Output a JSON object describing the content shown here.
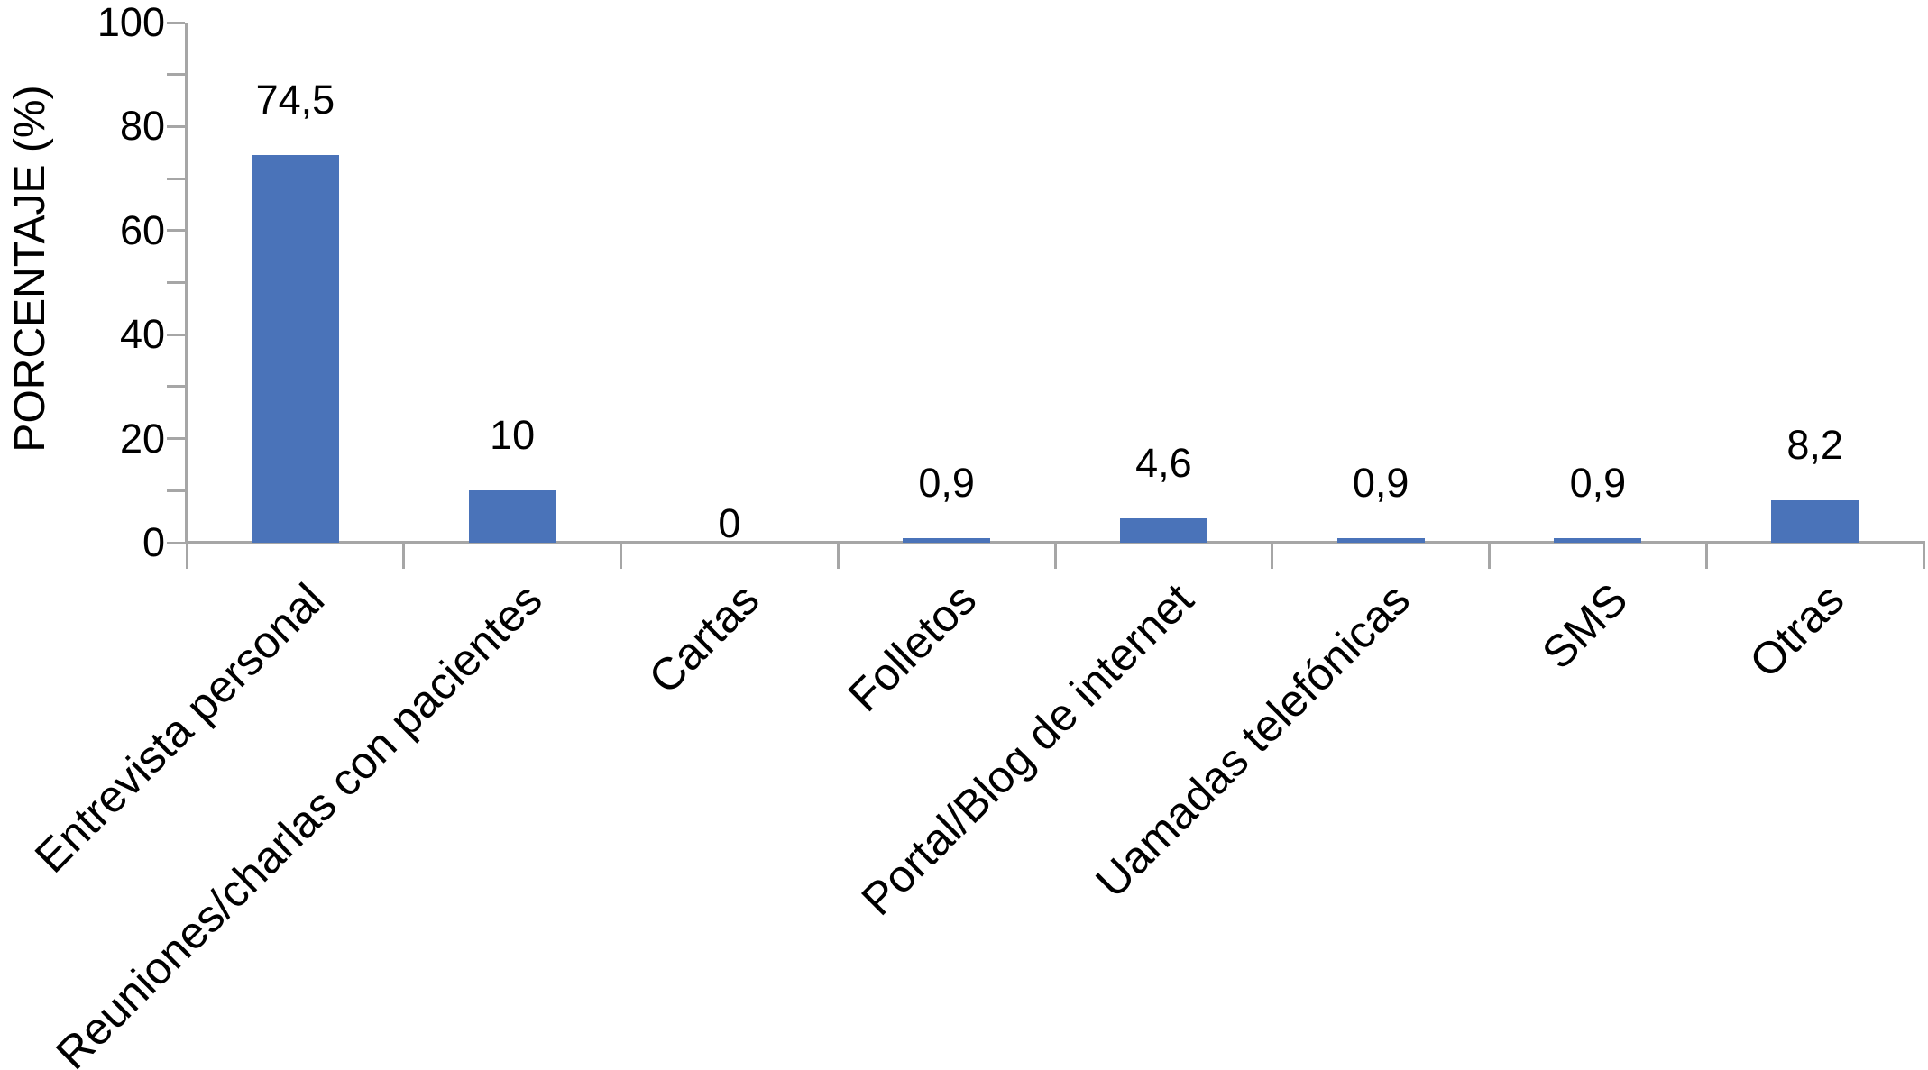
{
  "chart_data": {
    "type": "bar",
    "title": "",
    "ylabel": "PORCENTAJE (%)",
    "xlabel": "",
    "categories": [
      "Entrevista personal",
      "Reuniones/charlas con pacientes",
      "Cartas",
      "Folletos",
      "Portal/Blog de internet",
      "Uamadas telefónicas",
      "SMS",
      "Otras"
    ],
    "values": [
      74.5,
      10,
      0,
      0.9,
      4.6,
      0.9,
      0.9,
      8.2
    ],
    "value_labels": [
      "74,5",
      "10",
      "0",
      "0,9",
      "4,6",
      "0,9",
      "0,9",
      "8,2"
    ],
    "ylim": [
      0,
      100
    ],
    "ytick_major": [
      0,
      20,
      40,
      60,
      80,
      100
    ],
    "ytick_major_labels": [
      "0",
      "20",
      "40",
      "60",
      "80",
      "100"
    ],
    "ytick_minor_step": 10,
    "grid": false,
    "legend": "none",
    "bar_color": "#4A73B9",
    "axis_color": "#A6A6A6",
    "text_color": "#000000",
    "category_label_rotation_deg": -45,
    "decimal_separator": ","
  }
}
